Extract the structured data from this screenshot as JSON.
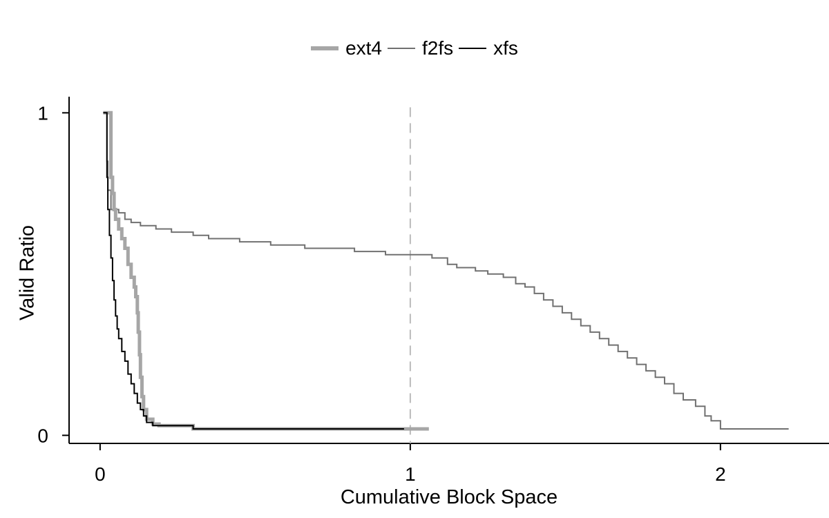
{
  "chart_data": {
    "type": "line",
    "title": "",
    "xlabel": "Cumulative Block Space",
    "ylabel": "Valid Ratio",
    "xlim": [
      -0.1,
      2.35
    ],
    "ylim": [
      -0.025,
      1.05
    ],
    "x_ticks": [
      "0",
      "1",
      "2"
    ],
    "y_ticks": [
      "0",
      "1"
    ],
    "grid": false,
    "legend_position": "top",
    "reference_line": {
      "x": 1,
      "style": "dashed",
      "color": "#bbbbbb"
    },
    "colors": {
      "ext4": "#a6a6a6",
      "f2fs": "#707070",
      "xfs": "#000000",
      "axis": "#000000"
    },
    "series": [
      {
        "name": "ext4",
        "line": "step",
        "points": [
          [
            0.01,
            1.0
          ],
          [
            0.03,
            1.0
          ],
          [
            0.035,
            0.8
          ],
          [
            0.04,
            0.75
          ],
          [
            0.045,
            0.7
          ],
          [
            0.05,
            0.67
          ],
          [
            0.06,
            0.64
          ],
          [
            0.07,
            0.61
          ],
          [
            0.08,
            0.58
          ],
          [
            0.09,
            0.53
          ],
          [
            0.1,
            0.49
          ],
          [
            0.11,
            0.46
          ],
          [
            0.115,
            0.43
          ],
          [
            0.12,
            0.38
          ],
          [
            0.123,
            0.32
          ],
          [
            0.127,
            0.25
          ],
          [
            0.13,
            0.18
          ],
          [
            0.135,
            0.12
          ],
          [
            0.14,
            0.08
          ],
          [
            0.15,
            0.05
          ],
          [
            0.17,
            0.035
          ],
          [
            0.19,
            0.03
          ],
          [
            0.3,
            0.02
          ],
          [
            0.5,
            0.02
          ],
          [
            1.0,
            0.02
          ],
          [
            1.06,
            0.02
          ]
        ]
      },
      {
        "name": "f2fs",
        "line": "step",
        "points": [
          [
            0.02,
            1.0
          ],
          [
            0.022,
            0.85
          ],
          [
            0.025,
            0.76
          ],
          [
            0.035,
            0.7
          ],
          [
            0.06,
            0.69
          ],
          [
            0.08,
            0.67
          ],
          [
            0.1,
            0.66
          ],
          [
            0.13,
            0.65
          ],
          [
            0.18,
            0.64
          ],
          [
            0.23,
            0.63
          ],
          [
            0.3,
            0.62
          ],
          [
            0.35,
            0.61
          ],
          [
            0.45,
            0.6
          ],
          [
            0.55,
            0.59
          ],
          [
            0.66,
            0.58
          ],
          [
            0.82,
            0.57
          ],
          [
            0.92,
            0.56
          ],
          [
            1.0,
            0.56
          ],
          [
            1.07,
            0.55
          ],
          [
            1.12,
            0.53
          ],
          [
            1.15,
            0.52
          ],
          [
            1.21,
            0.51
          ],
          [
            1.25,
            0.5
          ],
          [
            1.3,
            0.49
          ],
          [
            1.34,
            0.47
          ],
          [
            1.37,
            0.46
          ],
          [
            1.4,
            0.44
          ],
          [
            1.43,
            0.42
          ],
          [
            1.46,
            0.4
          ],
          [
            1.49,
            0.38
          ],
          [
            1.52,
            0.36
          ],
          [
            1.55,
            0.34
          ],
          [
            1.58,
            0.32
          ],
          [
            1.61,
            0.3
          ],
          [
            1.64,
            0.28
          ],
          [
            1.67,
            0.26
          ],
          [
            1.7,
            0.24
          ],
          [
            1.73,
            0.22
          ],
          [
            1.76,
            0.2
          ],
          [
            1.79,
            0.18
          ],
          [
            1.82,
            0.16
          ],
          [
            1.85,
            0.13
          ],
          [
            1.88,
            0.11
          ],
          [
            1.92,
            0.09
          ],
          [
            1.95,
            0.06
          ],
          [
            1.97,
            0.045
          ],
          [
            2.0,
            0.02
          ],
          [
            2.22,
            0.02
          ]
        ]
      },
      {
        "name": "xfs",
        "line": "step",
        "points": [
          [
            0.01,
            1.0
          ],
          [
            0.02,
            1.0
          ],
          [
            0.022,
            0.8
          ],
          [
            0.025,
            0.7
          ],
          [
            0.03,
            0.62
          ],
          [
            0.035,
            0.55
          ],
          [
            0.04,
            0.48
          ],
          [
            0.045,
            0.42
          ],
          [
            0.05,
            0.37
          ],
          [
            0.055,
            0.33
          ],
          [
            0.06,
            0.3
          ],
          [
            0.07,
            0.26
          ],
          [
            0.08,
            0.23
          ],
          [
            0.09,
            0.19
          ],
          [
            0.1,
            0.16
          ],
          [
            0.11,
            0.13
          ],
          [
            0.12,
            0.1
          ],
          [
            0.13,
            0.08
          ],
          [
            0.14,
            0.06
          ],
          [
            0.15,
            0.04
          ],
          [
            0.17,
            0.03
          ],
          [
            0.3,
            0.02
          ],
          [
            0.98,
            0.02
          ]
        ]
      }
    ]
  }
}
